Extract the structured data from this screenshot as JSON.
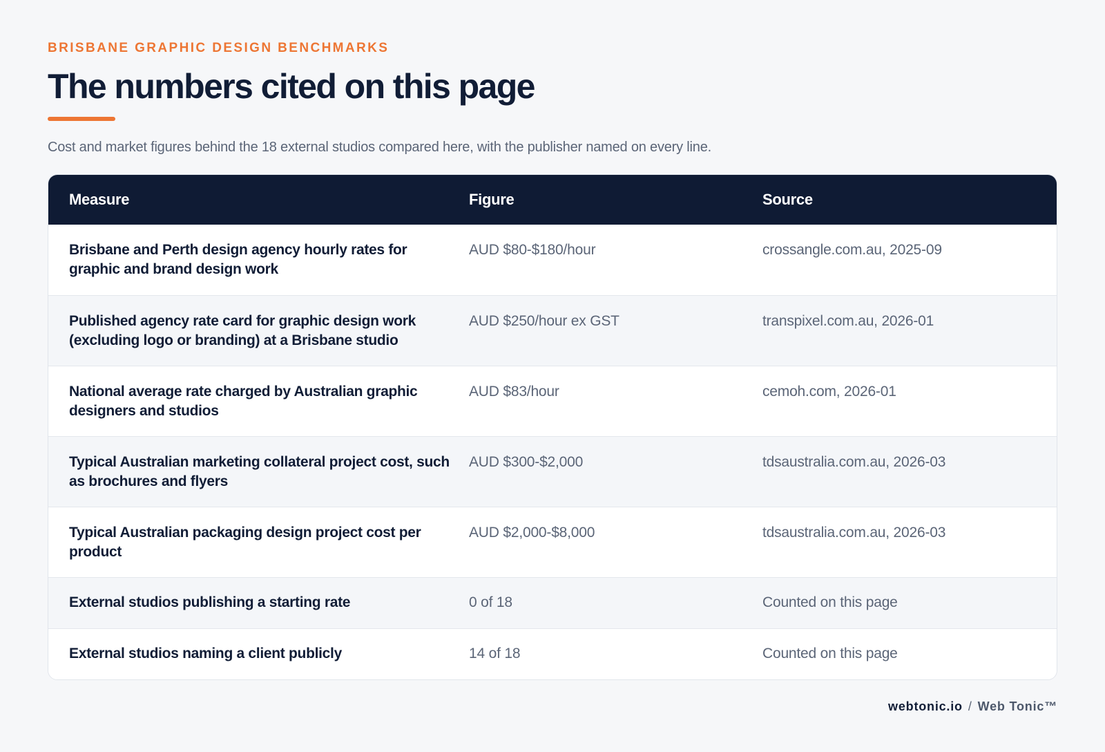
{
  "header": {
    "eyebrow": "BRISBANE GRAPHIC DESIGN BENCHMARKS",
    "title": "The numbers cited on this page",
    "subtitle": "Cost and market figures behind the 18 external studios compared here, with the publisher named on every line."
  },
  "table": {
    "columns": [
      "Measure",
      "Figure",
      "Source"
    ],
    "rows": [
      {
        "measure": "Brisbane and Perth design agency hourly rates for graphic and brand design work",
        "figure": "AUD $80-$180/hour",
        "source": "crossangle.com.au, 2025-09"
      },
      {
        "measure": "Published agency rate card for graphic design work (excluding logo or branding) at a Brisbane studio",
        "figure": "AUD $250/hour ex GST",
        "source": "transpixel.com.au, 2026-01"
      },
      {
        "measure": "National average rate charged by Australian graphic designers and studios",
        "figure": "AUD $83/hour",
        "source": "cemoh.com, 2026-01"
      },
      {
        "measure": "Typical Australian marketing collateral project cost, such as brochures and flyers",
        "figure": "AUD $300-$2,000",
        "source": "tdsaustralia.com.au, 2026-03"
      },
      {
        "measure": "Typical Australian packaging design project cost per product",
        "figure": "AUD $2,000-$8,000",
        "source": "tdsaustralia.com.au, 2026-03"
      },
      {
        "measure": "External studios publishing a starting rate",
        "figure": "0 of 18",
        "source": "Counted on this page"
      },
      {
        "measure": "External studios naming a client publicly",
        "figure": "14 of 18",
        "source": "Counted on this page"
      }
    ]
  },
  "footer": {
    "domain": "webtonic.io",
    "separator": "/",
    "brand": "Web Tonic™"
  },
  "colors": {
    "accent": "#ed7634",
    "header_bg": "#0f1b34",
    "text_primary": "#111d36",
    "text_secondary": "#5b6577",
    "page_bg": "#f6f7f9"
  }
}
